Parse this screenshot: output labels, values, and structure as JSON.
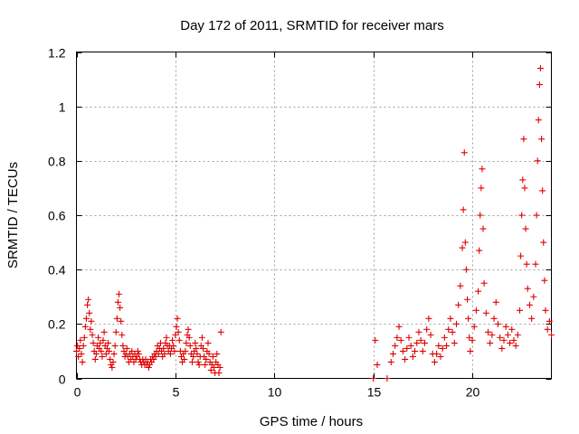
{
  "chart_data": {
    "type": "scatter",
    "title": "Day 172 of 2011, SRMTID for receiver mars",
    "xlabel": "GPS time / hours",
    "ylabel": "SRMTID / TECUs",
    "xlim": [
      0,
      24
    ],
    "ylim": [
      0,
      1.2
    ],
    "xticks": [
      0,
      5,
      10,
      15,
      20
    ],
    "xtick_labels": [
      "0",
      "5",
      "10",
      "15",
      "20"
    ],
    "yticks": [
      0,
      0.2,
      0.4,
      0.6,
      0.8,
      1.0,
      1.2
    ],
    "ytick_labels": [
      "0",
      "0.2",
      "0.4",
      "0.6",
      "0.8",
      "1",
      "1.2"
    ],
    "grid": true,
    "marker": "+",
    "series": [
      {
        "name": "SRMTID",
        "color": "#e00000",
        "points": [
          [
            0.0,
            0.1
          ],
          [
            0.05,
            0.12
          ],
          [
            0.1,
            0.08
          ],
          [
            0.15,
            0.11
          ],
          [
            0.2,
            0.14
          ],
          [
            0.25,
            0.09
          ],
          [
            0.3,
            0.06
          ],
          [
            0.35,
            0.12
          ],
          [
            0.4,
            0.15
          ],
          [
            0.45,
            0.19
          ],
          [
            0.5,
            0.22
          ],
          [
            0.55,
            0.27
          ],
          [
            0.6,
            0.29
          ],
          [
            0.65,
            0.24
          ],
          [
            0.7,
            0.18
          ],
          [
            0.75,
            0.21
          ],
          [
            0.8,
            0.16
          ],
          [
            0.85,
            0.13
          ],
          [
            0.9,
            0.1
          ],
          [
            0.95,
            0.07
          ],
          [
            1.0,
            0.09
          ],
          [
            1.05,
            0.12
          ],
          [
            1.1,
            0.15
          ],
          [
            1.15,
            0.11
          ],
          [
            1.2,
            0.13
          ],
          [
            1.25,
            0.1
          ],
          [
            1.3,
            0.08
          ],
          [
            1.35,
            0.14
          ],
          [
            1.4,
            0.17
          ],
          [
            1.45,
            0.12
          ],
          [
            1.5,
            0.09
          ],
          [
            1.55,
            0.11
          ],
          [
            1.6,
            0.13
          ],
          [
            1.65,
            0.1
          ],
          [
            1.7,
            0.07
          ],
          [
            1.75,
            0.05
          ],
          [
            1.8,
            0.04
          ],
          [
            1.85,
            0.06
          ],
          [
            1.9,
            0.09
          ],
          [
            1.95,
            0.12
          ],
          [
            2.0,
            0.17
          ],
          [
            2.05,
            0.22
          ],
          [
            2.1,
            0.28
          ],
          [
            2.15,
            0.31
          ],
          [
            2.2,
            0.26
          ],
          [
            2.25,
            0.21
          ],
          [
            2.3,
            0.16
          ],
          [
            2.35,
            0.12
          ],
          [
            2.4,
            0.1
          ],
          [
            2.45,
            0.08
          ],
          [
            2.5,
            0.09
          ],
          [
            2.55,
            0.11
          ],
          [
            2.6,
            0.08
          ],
          [
            2.65,
            0.06
          ],
          [
            2.7,
            0.09
          ],
          [
            2.75,
            0.07
          ],
          [
            2.8,
            0.1
          ],
          [
            2.85,
            0.08
          ],
          [
            2.9,
            0.06
          ],
          [
            2.95,
            0.09
          ],
          [
            3.0,
            0.07
          ],
          [
            3.05,
            0.08
          ],
          [
            3.1,
            0.1
          ],
          [
            3.15,
            0.09
          ],
          [
            3.2,
            0.07
          ],
          [
            3.25,
            0.06
          ],
          [
            3.3,
            0.05
          ],
          [
            3.35,
            0.07
          ],
          [
            3.4,
            0.06
          ],
          [
            3.45,
            0.05
          ],
          [
            3.5,
            0.07
          ],
          [
            3.55,
            0.05
          ],
          [
            3.6,
            0.06
          ],
          [
            3.65,
            0.04
          ],
          [
            3.7,
            0.05
          ],
          [
            3.75,
            0.07
          ],
          [
            3.8,
            0.06
          ],
          [
            3.85,
            0.08
          ],
          [
            3.9,
            0.07
          ],
          [
            3.95,
            0.09
          ],
          [
            4.0,
            0.08
          ],
          [
            4.05,
            0.1
          ],
          [
            4.1,
            0.12
          ],
          [
            4.15,
            0.09
          ],
          [
            4.2,
            0.11
          ],
          [
            4.25,
            0.13
          ],
          [
            4.3,
            0.1
          ],
          [
            4.35,
            0.08
          ],
          [
            4.4,
            0.11
          ],
          [
            4.45,
            0.09
          ],
          [
            4.5,
            0.13
          ],
          [
            4.55,
            0.15
          ],
          [
            4.6,
            0.12
          ],
          [
            4.65,
            0.1
          ],
          [
            4.7,
            0.12
          ],
          [
            4.75,
            0.09
          ],
          [
            4.8,
            0.11
          ],
          [
            4.85,
            0.14
          ],
          [
            4.9,
            0.12
          ],
          [
            4.95,
            0.1
          ],
          [
            5.0,
            0.16
          ],
          [
            5.05,
            0.19
          ],
          [
            5.1,
            0.22
          ],
          [
            5.15,
            0.17
          ],
          [
            5.2,
            0.14
          ],
          [
            5.25,
            0.1
          ],
          [
            5.3,
            0.08
          ],
          [
            5.35,
            0.06
          ],
          [
            5.4,
            0.09
          ],
          [
            5.45,
            0.07
          ],
          [
            5.5,
            0.1
          ],
          [
            5.55,
            0.13
          ],
          [
            5.6,
            0.16
          ],
          [
            5.65,
            0.18
          ],
          [
            5.7,
            0.15
          ],
          [
            5.75,
            0.12
          ],
          [
            5.8,
            0.09
          ],
          [
            5.85,
            0.06
          ],
          [
            5.9,
            0.08
          ],
          [
            5.95,
            0.1
          ],
          [
            6.0,
            0.13
          ],
          [
            6.05,
            0.11
          ],
          [
            6.1,
            0.09
          ],
          [
            6.15,
            0.06
          ],
          [
            6.2,
            0.05
          ],
          [
            6.25,
            0.08
          ],
          [
            6.3,
            0.12
          ],
          [
            6.35,
            0.15
          ],
          [
            6.4,
            0.11
          ],
          [
            6.45,
            0.08
          ],
          [
            6.5,
            0.05
          ],
          [
            6.55,
            0.07
          ],
          [
            6.6,
            0.1
          ],
          [
            6.65,
            0.13
          ],
          [
            6.7,
            0.09
          ],
          [
            6.75,
            0.06
          ],
          [
            6.8,
            0.03
          ],
          [
            6.85,
            0.05
          ],
          [
            6.9,
            0.08
          ],
          [
            6.95,
            0.04
          ],
          [
            7.0,
            0.02
          ],
          [
            7.05,
            0.06
          ],
          [
            7.1,
            0.09
          ],
          [
            7.15,
            0.05
          ],
          [
            7.2,
            0.02
          ],
          [
            7.25,
            0.04
          ],
          [
            7.3,
            0.17
          ],
          [
            15.0,
            0.0
          ],
          [
            15.1,
            0.14
          ],
          [
            15.2,
            0.05
          ],
          [
            15.7,
            0.0
          ],
          [
            15.9,
            0.06
          ],
          [
            16.0,
            0.09
          ],
          [
            16.1,
            0.12
          ],
          [
            16.2,
            0.15
          ],
          [
            16.3,
            0.19
          ],
          [
            16.4,
            0.14
          ],
          [
            16.5,
            0.1
          ],
          [
            16.6,
            0.07
          ],
          [
            16.7,
            0.11
          ],
          [
            16.8,
            0.15
          ],
          [
            16.9,
            0.12
          ],
          [
            17.0,
            0.08
          ],
          [
            17.1,
            0.1
          ],
          [
            17.2,
            0.13
          ],
          [
            17.3,
            0.17
          ],
          [
            17.4,
            0.14
          ],
          [
            17.5,
            0.1
          ],
          [
            17.6,
            0.13
          ],
          [
            17.7,
            0.18
          ],
          [
            17.8,
            0.22
          ],
          [
            17.9,
            0.16
          ],
          [
            18.0,
            0.09
          ],
          [
            18.1,
            0.06
          ],
          [
            18.2,
            0.09
          ],
          [
            18.3,
            0.12
          ],
          [
            18.4,
            0.08
          ],
          [
            18.5,
            0.11
          ],
          [
            18.6,
            0.15
          ],
          [
            18.7,
            0.12
          ],
          [
            18.8,
            0.18
          ],
          [
            18.9,
            0.22
          ],
          [
            19.0,
            0.17
          ],
          [
            19.1,
            0.13
          ],
          [
            19.2,
            0.2
          ],
          [
            19.3,
            0.27
          ],
          [
            19.4,
            0.34
          ],
          [
            19.5,
            0.48
          ],
          [
            19.55,
            0.62
          ],
          [
            19.6,
            0.83
          ],
          [
            19.65,
            0.5
          ],
          [
            19.7,
            0.4
          ],
          [
            19.75,
            0.29
          ],
          [
            19.8,
            0.22
          ],
          [
            19.85,
            0.15
          ],
          [
            19.9,
            0.1
          ],
          [
            20.0,
            0.14
          ],
          [
            20.1,
            0.19
          ],
          [
            20.2,
            0.25
          ],
          [
            20.3,
            0.32
          ],
          [
            20.35,
            0.47
          ],
          [
            20.4,
            0.6
          ],
          [
            20.45,
            0.7
          ],
          [
            20.5,
            0.77
          ],
          [
            20.55,
            0.55
          ],
          [
            20.6,
            0.35
          ],
          [
            20.7,
            0.24
          ],
          [
            20.8,
            0.17
          ],
          [
            20.9,
            0.13
          ],
          [
            21.0,
            0.16
          ],
          [
            21.1,
            0.22
          ],
          [
            21.2,
            0.28
          ],
          [
            21.3,
            0.2
          ],
          [
            21.4,
            0.15
          ],
          [
            21.5,
            0.11
          ],
          [
            21.6,
            0.14
          ],
          [
            21.7,
            0.19
          ],
          [
            21.8,
            0.16
          ],
          [
            21.9,
            0.13
          ],
          [
            22.0,
            0.18
          ],
          [
            22.1,
            0.14
          ],
          [
            22.2,
            0.12
          ],
          [
            22.3,
            0.16
          ],
          [
            22.4,
            0.25
          ],
          [
            22.45,
            0.45
          ],
          [
            22.5,
            0.6
          ],
          [
            22.55,
            0.73
          ],
          [
            22.6,
            0.88
          ],
          [
            22.65,
            0.7
          ],
          [
            22.7,
            0.55
          ],
          [
            22.75,
            0.42
          ],
          [
            22.8,
            0.33
          ],
          [
            22.9,
            0.27
          ],
          [
            23.0,
            0.22
          ],
          [
            23.1,
            0.3
          ],
          [
            23.2,
            0.42
          ],
          [
            23.25,
            0.6
          ],
          [
            23.3,
            0.8
          ],
          [
            23.35,
            0.95
          ],
          [
            23.4,
            1.08
          ],
          [
            23.45,
            1.14
          ],
          [
            23.5,
            0.88
          ],
          [
            23.55,
            0.69
          ],
          [
            23.6,
            0.5
          ],
          [
            23.65,
            0.36
          ],
          [
            23.7,
            0.25
          ],
          [
            23.8,
            0.18
          ],
          [
            23.9,
            0.21
          ],
          [
            24.0,
            0.16
          ]
        ]
      }
    ]
  }
}
